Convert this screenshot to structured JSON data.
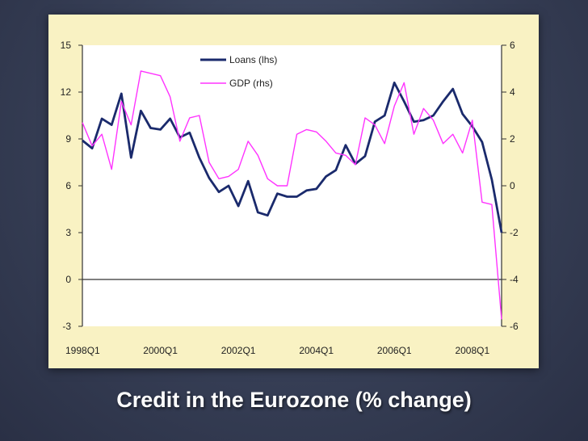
{
  "slide": {
    "caption": "Credit in the Eurozone (% change)"
  },
  "chart_data": {
    "type": "line",
    "title": "",
    "x_tick_labels": [
      "1998Q1",
      "2000Q1",
      "2002Q1",
      "2004Q1",
      "2006Q1",
      "2008Q1"
    ],
    "x_range": [
      1998.0,
      2008.75
    ],
    "y_left": {
      "label": "Loans (lhs)",
      "ticks": [
        15,
        12,
        9,
        6,
        3,
        0,
        -3
      ],
      "range": [
        -3,
        15
      ]
    },
    "y_right": {
      "label": "GDP (rhs)",
      "ticks": [
        6,
        4,
        2,
        0,
        -2,
        -4,
        -6
      ],
      "range": [
        -6,
        6
      ]
    },
    "legend_position": "top-left",
    "colors": {
      "loans": "#1a2a6c",
      "gdp": "#ff33ff",
      "plot_bg": "#ffffff",
      "frame_bg": "#f9f2c3"
    },
    "series": [
      {
        "name": "Loans (lhs)",
        "axis": "left",
        "x": [
          1998.0,
          1998.25,
          1998.5,
          1998.75,
          1999.0,
          1999.25,
          1999.5,
          1999.75,
          2000.0,
          2000.25,
          2000.5,
          2000.75,
          2001.0,
          2001.25,
          2001.5,
          2001.75,
          2002.0,
          2002.25,
          2002.5,
          2002.75,
          2003.0,
          2003.25,
          2003.5,
          2003.75,
          2004.0,
          2004.25,
          2004.5,
          2004.75,
          2005.0,
          2005.25,
          2005.5,
          2005.75,
          2006.0,
          2006.25,
          2006.5,
          2006.75,
          2007.0,
          2007.25,
          2007.5,
          2007.75,
          2008.0,
          2008.25,
          2008.5,
          2008.75
        ],
        "values": [
          8.9,
          8.4,
          10.3,
          9.9,
          11.9,
          7.8,
          10.8,
          9.7,
          9.6,
          10.3,
          9.1,
          9.4,
          7.8,
          6.5,
          5.6,
          6.0,
          4.7,
          6.3,
          4.3,
          4.1,
          5.5,
          5.3,
          5.3,
          5.7,
          5.8,
          6.6,
          7.0,
          8.6,
          7.4,
          7.9,
          10.1,
          10.5,
          12.6,
          11.4,
          10.1,
          10.2,
          10.5,
          11.4,
          12.2,
          10.6,
          9.8,
          8.8,
          6.4,
          3.0
        ]
      },
      {
        "name": "GDP (rhs)",
        "axis": "right",
        "x": [
          1998.0,
          1998.25,
          1998.5,
          1998.75,
          1999.0,
          1999.25,
          1999.5,
          1999.75,
          2000.0,
          2000.25,
          2000.5,
          2000.75,
          2001.0,
          2001.25,
          2001.5,
          2001.75,
          2002.0,
          2002.25,
          2002.5,
          2002.75,
          2003.0,
          2003.25,
          2003.5,
          2003.75,
          2004.0,
          2004.25,
          2004.5,
          2004.75,
          2005.0,
          2005.25,
          2005.5,
          2005.75,
          2006.0,
          2006.25,
          2006.5,
          2006.75,
          2007.0,
          2007.25,
          2007.5,
          2007.75,
          2008.0,
          2008.25,
          2008.5,
          2008.75
        ],
        "values": [
          2.7,
          1.7,
          2.2,
          0.7,
          3.6,
          2.6,
          4.9,
          4.8,
          4.7,
          3.8,
          1.9,
          2.9,
          3.0,
          1.0,
          0.3,
          0.4,
          0.7,
          1.9,
          1.3,
          0.3,
          0.0,
          0.0,
          2.2,
          2.4,
          2.3,
          1.9,
          1.4,
          1.3,
          0.9,
          2.9,
          2.6,
          1.8,
          3.4,
          4.4,
          2.2,
          3.3,
          2.8,
          1.8,
          2.2,
          1.4,
          2.8,
          -0.7,
          -0.8,
          -5.7
        ]
      }
    ]
  }
}
